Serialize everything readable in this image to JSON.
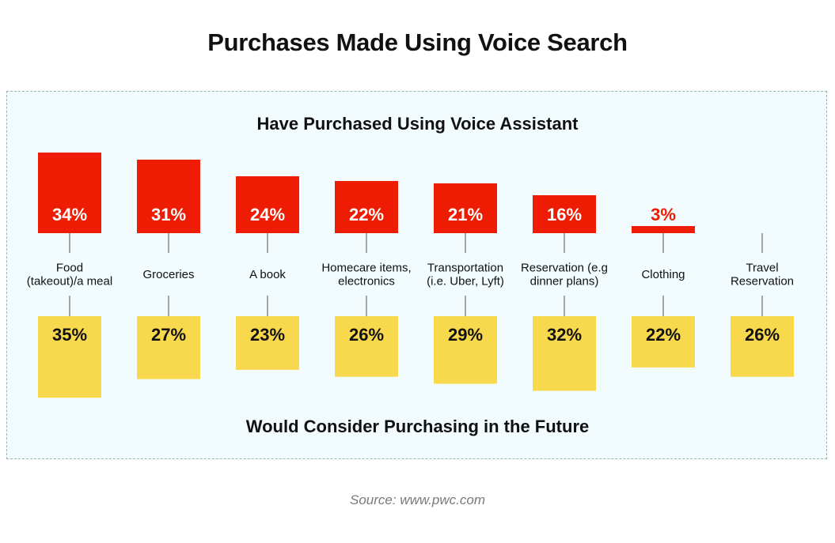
{
  "title": "Purchases Made Using Voice Search",
  "source": "Source: www.pwc.com",
  "colors": {
    "red": "#ee1c03",
    "yellow": "#f8d84c",
    "panel": "#f2fbfd"
  },
  "chart_data": {
    "type": "bar",
    "categories": [
      [
        "Food",
        "(takeout)/a meal"
      ],
      [
        "Groceries"
      ],
      [
        "A book"
      ],
      [
        "Homecare items,",
        "electronics"
      ],
      [
        "Transportation",
        "(i.e. Uber, Lyft)"
      ],
      [
        "Reservation (e.g",
        "dinner plans)"
      ],
      [
        "Clothing"
      ],
      [
        "Travel",
        "Reservation"
      ]
    ],
    "series": [
      {
        "name": "Have Purchased Using Voice Assistant",
        "values": [
          34,
          31,
          24,
          22,
          21,
          16,
          3,
          null
        ],
        "labels": [
          "34%",
          "31%",
          "24%",
          "22%",
          "21%",
          "16%",
          "3%",
          ""
        ]
      },
      {
        "name": "Would Consider Purchasing in the Future",
        "values": [
          35,
          27,
          23,
          26,
          29,
          32,
          22,
          26
        ],
        "labels": [
          "35%",
          "27%",
          "23%",
          "26%",
          "29%",
          "32%",
          "22%",
          "26%"
        ]
      }
    ],
    "unit": "%"
  }
}
